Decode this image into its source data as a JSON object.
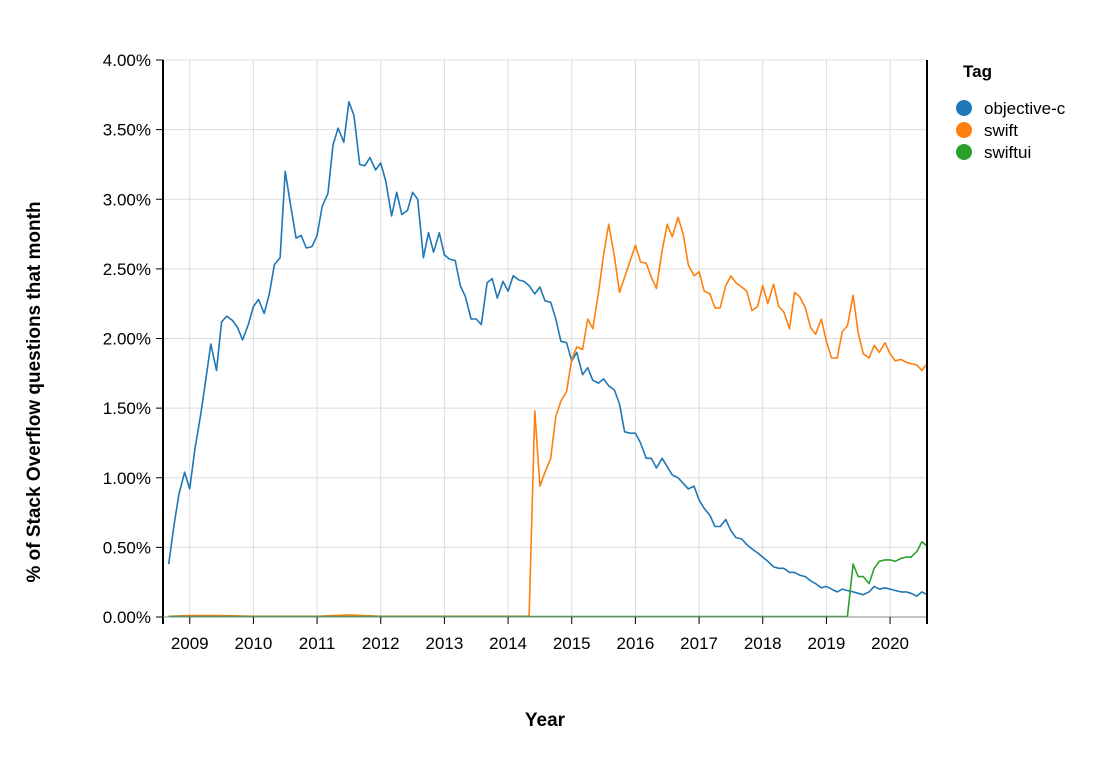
{
  "chart_data": {
    "type": "line",
    "xlabel": "Year",
    "ylabel": "% of Stack Overflow questions that month",
    "xlim": [
      2008.58,
      2020.58
    ],
    "ylim": [
      0,
      4
    ],
    "x_ticks": [
      "2009",
      "2010",
      "2011",
      "2012",
      "2013",
      "2014",
      "2015",
      "2016",
      "2017",
      "2018",
      "2019",
      "2020"
    ],
    "y_ticks": [
      "0.00%",
      "0.50%",
      "1.00%",
      "1.50%",
      "2.00%",
      "2.50%",
      "3.00%",
      "3.50%",
      "4.00%"
    ],
    "grid": true,
    "legend": {
      "title": "Tag",
      "position": "top-right"
    },
    "series": [
      {
        "name": "objective-c",
        "color": "#1f77b4",
        "points": [
          [
            2008.67,
            0.38
          ],
          [
            2008.75,
            0.65
          ],
          [
            2008.83,
            0.88
          ],
          [
            2008.92,
            1.04
          ],
          [
            2009.0,
            0.92
          ],
          [
            2009.08,
            1.2
          ],
          [
            2009.17,
            1.45
          ],
          [
            2009.25,
            1.7
          ],
          [
            2009.33,
            1.96
          ],
          [
            2009.42,
            1.77
          ],
          [
            2009.5,
            2.12
          ],
          [
            2009.58,
            2.16
          ],
          [
            2009.67,
            2.13
          ],
          [
            2009.75,
            2.08
          ],
          [
            2009.83,
            1.99
          ],
          [
            2009.92,
            2.1
          ],
          [
            2010.0,
            2.23
          ],
          [
            2010.08,
            2.28
          ],
          [
            2010.17,
            2.18
          ],
          [
            2010.25,
            2.32
          ],
          [
            2010.33,
            2.53
          ],
          [
            2010.42,
            2.58
          ],
          [
            2010.5,
            3.2
          ],
          [
            2010.58,
            2.97
          ],
          [
            2010.67,
            2.72
          ],
          [
            2010.75,
            2.74
          ],
          [
            2010.83,
            2.65
          ],
          [
            2010.92,
            2.66
          ],
          [
            2011.0,
            2.74
          ],
          [
            2011.08,
            2.95
          ],
          [
            2011.17,
            3.04
          ],
          [
            2011.25,
            3.39
          ],
          [
            2011.33,
            3.51
          ],
          [
            2011.42,
            3.41
          ],
          [
            2011.5,
            3.7
          ],
          [
            2011.58,
            3.6
          ],
          [
            2011.67,
            3.25
          ],
          [
            2011.75,
            3.24
          ],
          [
            2011.83,
            3.3
          ],
          [
            2011.92,
            3.21
          ],
          [
            2012.0,
            3.26
          ],
          [
            2012.08,
            3.13
          ],
          [
            2012.17,
            2.88
          ],
          [
            2012.25,
            3.05
          ],
          [
            2012.33,
            2.89
          ],
          [
            2012.42,
            2.92
          ],
          [
            2012.5,
            3.05
          ],
          [
            2012.58,
            3.0
          ],
          [
            2012.67,
            2.58
          ],
          [
            2012.75,
            2.76
          ],
          [
            2012.83,
            2.62
          ],
          [
            2012.92,
            2.76
          ],
          [
            2013.0,
            2.6
          ],
          [
            2013.08,
            2.57
          ],
          [
            2013.17,
            2.56
          ],
          [
            2013.25,
            2.38
          ],
          [
            2013.33,
            2.3
          ],
          [
            2013.42,
            2.14
          ],
          [
            2013.5,
            2.14
          ],
          [
            2013.58,
            2.1
          ],
          [
            2013.67,
            2.4
          ],
          [
            2013.75,
            2.43
          ],
          [
            2013.83,
            2.29
          ],
          [
            2013.92,
            2.41
          ],
          [
            2014.0,
            2.34
          ],
          [
            2014.08,
            2.45
          ],
          [
            2014.17,
            2.42
          ],
          [
            2014.25,
            2.41
          ],
          [
            2014.33,
            2.38
          ],
          [
            2014.42,
            2.32
          ],
          [
            2014.5,
            2.37
          ],
          [
            2014.58,
            2.27
          ],
          [
            2014.67,
            2.26
          ],
          [
            2014.75,
            2.14
          ],
          [
            2014.83,
            1.98
          ],
          [
            2014.92,
            1.97
          ],
          [
            2015.0,
            1.84
          ],
          [
            2015.08,
            1.9
          ],
          [
            2015.17,
            1.74
          ],
          [
            2015.25,
            1.79
          ],
          [
            2015.33,
            1.7
          ],
          [
            2015.42,
            1.68
          ],
          [
            2015.5,
            1.71
          ],
          [
            2015.58,
            1.66
          ],
          [
            2015.67,
            1.63
          ],
          [
            2015.75,
            1.53
          ],
          [
            2015.83,
            1.33
          ],
          [
            2015.92,
            1.32
          ],
          [
            2016.0,
            1.32
          ],
          [
            2016.08,
            1.25
          ],
          [
            2016.17,
            1.14
          ],
          [
            2016.25,
            1.14
          ],
          [
            2016.33,
            1.07
          ],
          [
            2016.42,
            1.14
          ],
          [
            2016.5,
            1.08
          ],
          [
            2016.58,
            1.02
          ],
          [
            2016.67,
            1.0
          ],
          [
            2016.75,
            0.96
          ],
          [
            2016.83,
            0.92
          ],
          [
            2016.92,
            0.94
          ],
          [
            2017.0,
            0.84
          ],
          [
            2017.08,
            0.78
          ],
          [
            2017.17,
            0.73
          ],
          [
            2017.25,
            0.65
          ],
          [
            2017.33,
            0.65
          ],
          [
            2017.42,
            0.7
          ],
          [
            2017.5,
            0.62
          ],
          [
            2017.58,
            0.57
          ],
          [
            2017.67,
            0.56
          ],
          [
            2017.75,
            0.52
          ],
          [
            2017.83,
            0.49
          ],
          [
            2017.92,
            0.46
          ],
          [
            2018.0,
            0.43
          ],
          [
            2018.08,
            0.4
          ],
          [
            2018.17,
            0.36
          ],
          [
            2018.25,
            0.35
          ],
          [
            2018.33,
            0.35
          ],
          [
            2018.42,
            0.32
          ],
          [
            2018.5,
            0.32
          ],
          [
            2018.58,
            0.3
          ],
          [
            2018.67,
            0.29
          ],
          [
            2018.75,
            0.26
          ],
          [
            2018.83,
            0.24
          ],
          [
            2018.92,
            0.21
          ],
          [
            2019.0,
            0.22
          ],
          [
            2019.08,
            0.2
          ],
          [
            2019.17,
            0.18
          ],
          [
            2019.25,
            0.2
          ],
          [
            2019.33,
            0.19
          ],
          [
            2019.42,
            0.18
          ],
          [
            2019.5,
            0.17
          ],
          [
            2019.58,
            0.16
          ],
          [
            2019.67,
            0.18
          ],
          [
            2019.75,
            0.22
          ],
          [
            2019.83,
            0.2
          ],
          [
            2019.92,
            0.21
          ],
          [
            2020.0,
            0.2
          ],
          [
            2020.08,
            0.19
          ],
          [
            2020.17,
            0.18
          ],
          [
            2020.25,
            0.18
          ],
          [
            2020.33,
            0.17
          ],
          [
            2020.42,
            0.15
          ],
          [
            2020.5,
            0.18
          ],
          [
            2020.58,
            0.16
          ]
        ]
      },
      {
        "name": "swift",
        "color": "#ff7f0e",
        "points": [
          [
            2008.67,
            0.005
          ],
          [
            2009.0,
            0.01
          ],
          [
            2009.5,
            0.01
          ],
          [
            2010.0,
            0.005
          ],
          [
            2010.5,
            0.005
          ],
          [
            2011.0,
            0.005
          ],
          [
            2011.5,
            0.015
          ],
          [
            2012.0,
            0.005
          ],
          [
            2012.5,
            0.005
          ],
          [
            2013.0,
            0.005
          ],
          [
            2013.5,
            0.005
          ],
          [
            2014.0,
            0.005
          ],
          [
            2014.33,
            0.005
          ],
          [
            2014.42,
            1.48
          ],
          [
            2014.5,
            0.94
          ],
          [
            2014.58,
            1.04
          ],
          [
            2014.67,
            1.14
          ],
          [
            2014.75,
            1.44
          ],
          [
            2014.83,
            1.55
          ],
          [
            2014.92,
            1.62
          ],
          [
            2015.0,
            1.85
          ],
          [
            2015.08,
            1.94
          ],
          [
            2015.17,
            1.92
          ],
          [
            2015.25,
            2.14
          ],
          [
            2015.33,
            2.07
          ],
          [
            2015.42,
            2.33
          ],
          [
            2015.5,
            2.6
          ],
          [
            2015.58,
            2.82
          ],
          [
            2015.67,
            2.59
          ],
          [
            2015.75,
            2.33
          ],
          [
            2015.83,
            2.44
          ],
          [
            2015.92,
            2.56
          ],
          [
            2016.0,
            2.67
          ],
          [
            2016.08,
            2.55
          ],
          [
            2016.17,
            2.54
          ],
          [
            2016.25,
            2.44
          ],
          [
            2016.33,
            2.36
          ],
          [
            2016.42,
            2.63
          ],
          [
            2016.5,
            2.82
          ],
          [
            2016.58,
            2.73
          ],
          [
            2016.67,
            2.87
          ],
          [
            2016.75,
            2.75
          ],
          [
            2016.83,
            2.53
          ],
          [
            2016.92,
            2.45
          ],
          [
            2017.0,
            2.48
          ],
          [
            2017.08,
            2.34
          ],
          [
            2017.17,
            2.32
          ],
          [
            2017.25,
            2.22
          ],
          [
            2017.33,
            2.22
          ],
          [
            2017.42,
            2.38
          ],
          [
            2017.5,
            2.45
          ],
          [
            2017.58,
            2.4
          ],
          [
            2017.67,
            2.37
          ],
          [
            2017.75,
            2.34
          ],
          [
            2017.83,
            2.2
          ],
          [
            2017.92,
            2.23
          ],
          [
            2018.0,
            2.38
          ],
          [
            2018.08,
            2.25
          ],
          [
            2018.17,
            2.39
          ],
          [
            2018.25,
            2.23
          ],
          [
            2018.33,
            2.19
          ],
          [
            2018.42,
            2.07
          ],
          [
            2018.5,
            2.33
          ],
          [
            2018.58,
            2.3
          ],
          [
            2018.67,
            2.22
          ],
          [
            2018.75,
            2.08
          ],
          [
            2018.83,
            2.03
          ],
          [
            2018.92,
            2.14
          ],
          [
            2019.0,
            1.98
          ],
          [
            2019.08,
            1.86
          ],
          [
            2019.17,
            1.86
          ],
          [
            2019.25,
            2.05
          ],
          [
            2019.33,
            2.09
          ],
          [
            2019.42,
            2.31
          ],
          [
            2019.5,
            2.04
          ],
          [
            2019.58,
            1.89
          ],
          [
            2019.67,
            1.86
          ],
          [
            2019.75,
            1.95
          ],
          [
            2019.83,
            1.9
          ],
          [
            2019.92,
            1.97
          ],
          [
            2020.0,
            1.89
          ],
          [
            2020.08,
            1.84
          ],
          [
            2020.17,
            1.85
          ],
          [
            2020.25,
            1.83
          ],
          [
            2020.33,
            1.82
          ],
          [
            2020.42,
            1.81
          ],
          [
            2020.5,
            1.77
          ],
          [
            2020.58,
            1.82
          ]
        ]
      },
      {
        "name": "swiftui",
        "color": "#2ca02c",
        "points": [
          [
            2008.67,
            0.003
          ],
          [
            2009.5,
            0.003
          ],
          [
            2010.5,
            0.003
          ],
          [
            2011.5,
            0.003
          ],
          [
            2012.5,
            0.003
          ],
          [
            2013.5,
            0.003
          ],
          [
            2014.5,
            0.003
          ],
          [
            2015.5,
            0.003
          ],
          [
            2016.5,
            0.003
          ],
          [
            2017.5,
            0.003
          ],
          [
            2018.5,
            0.003
          ],
          [
            2019.33,
            0.003
          ],
          [
            2019.42,
            0.38
          ],
          [
            2019.5,
            0.29
          ],
          [
            2019.58,
            0.29
          ],
          [
            2019.67,
            0.24
          ],
          [
            2019.75,
            0.35
          ],
          [
            2019.83,
            0.4
          ],
          [
            2019.92,
            0.41
          ],
          [
            2020.0,
            0.41
          ],
          [
            2020.08,
            0.4
          ],
          [
            2020.17,
            0.42
          ],
          [
            2020.25,
            0.43
          ],
          [
            2020.33,
            0.43
          ],
          [
            2020.42,
            0.47
          ],
          [
            2020.5,
            0.54
          ],
          [
            2020.58,
            0.51
          ]
        ]
      }
    ]
  }
}
